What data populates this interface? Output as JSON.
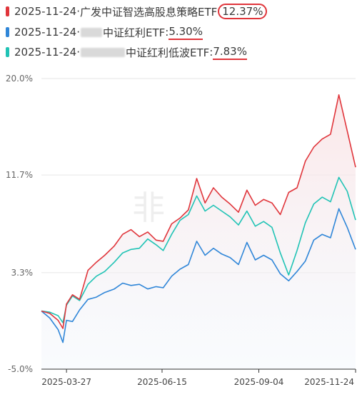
{
  "legend": [
    {
      "date": "2025-11-24",
      "sep": "·",
      "name": "广发中证智选高股息策略ETF",
      "colon": ":",
      "value": "12.37%",
      "color": "#e0353b",
      "mark": "circle",
      "blur_width": 0
    },
    {
      "date": "2025-11-24",
      "sep": "·",
      "name": "中证红利ETF",
      "colon": ":",
      "value": "5.30%",
      "color": "#2f86d8",
      "mark": "underline",
      "blur_width": 30
    },
    {
      "date": "2025-11-24",
      "sep": "·",
      "name": "中证红利低波ETF",
      "colon": ":",
      "value": "7.83%",
      "color": "#20c3b5",
      "mark": "underline",
      "blur_width": 62
    }
  ],
  "chart_data": {
    "type": "line",
    "ylim": [
      -5.0,
      20.0
    ],
    "ytick_labels": [
      "20.0%",
      "11.7%",
      "3.3%",
      "-5.0%"
    ],
    "ytick_values": [
      20.0,
      11.7,
      3.3,
      -5.0
    ],
    "xtick_labels": [
      "2025-03-27",
      "2025-06-15",
      "2025-09-04",
      "2025-11-24"
    ],
    "x_start": "2025-03-06",
    "x_end": "2025-11-24",
    "watermark": "非",
    "series": [
      {
        "name": "广发中证智选高股息策略ETF",
        "color": "#e0353b",
        "points": [
          [
            "2025-03-06",
            0.0
          ],
          [
            "2025-03-13",
            -0.2
          ],
          [
            "2025-03-20",
            -0.8
          ],
          [
            "2025-03-24",
            -1.5
          ],
          [
            "2025-03-27",
            0.6
          ],
          [
            "2025-04-01",
            1.4
          ],
          [
            "2025-04-07",
            1.0
          ],
          [
            "2025-04-14",
            3.5
          ],
          [
            "2025-04-21",
            4.2
          ],
          [
            "2025-04-28",
            4.8
          ],
          [
            "2025-05-06",
            5.6
          ],
          [
            "2025-05-13",
            6.6
          ],
          [
            "2025-05-20",
            7.0
          ],
          [
            "2025-05-27",
            6.4
          ],
          [
            "2025-06-03",
            6.8
          ],
          [
            "2025-06-10",
            6.1
          ],
          [
            "2025-06-16",
            6.0
          ],
          [
            "2025-06-23",
            7.5
          ],
          [
            "2025-06-30",
            8.0
          ],
          [
            "2025-07-07",
            8.7
          ],
          [
            "2025-07-14",
            11.4
          ],
          [
            "2025-07-21",
            9.3
          ],
          [
            "2025-07-28",
            10.6
          ],
          [
            "2025-08-04",
            9.8
          ],
          [
            "2025-08-11",
            9.2
          ],
          [
            "2025-08-18",
            8.5
          ],
          [
            "2025-08-25",
            10.4
          ],
          [
            "2025-09-01",
            9.1
          ],
          [
            "2025-09-08",
            9.6
          ],
          [
            "2025-09-15",
            9.3
          ],
          [
            "2025-09-22",
            8.3
          ],
          [
            "2025-09-29",
            10.2
          ],
          [
            "2025-10-06",
            10.6
          ],
          [
            "2025-10-13",
            12.9
          ],
          [
            "2025-10-20",
            14.1
          ],
          [
            "2025-10-27",
            14.8
          ],
          [
            "2025-11-03",
            15.2
          ],
          [
            "2025-11-10",
            18.6
          ],
          [
            "2025-11-17",
            15.5
          ],
          [
            "2025-11-24",
            12.37
          ]
        ]
      },
      {
        "name": "中证红利ETF",
        "color": "#2f86d8",
        "points": [
          [
            "2025-03-06",
            0.0
          ],
          [
            "2025-03-13",
            -0.6
          ],
          [
            "2025-03-20",
            -1.6
          ],
          [
            "2025-03-24",
            -2.7
          ],
          [
            "2025-03-27",
            -0.8
          ],
          [
            "2025-04-01",
            -0.9
          ],
          [
            "2025-04-07",
            0.1
          ],
          [
            "2025-04-14",
            1.0
          ],
          [
            "2025-04-21",
            1.2
          ],
          [
            "2025-04-28",
            1.6
          ],
          [
            "2025-05-06",
            1.9
          ],
          [
            "2025-05-13",
            2.4
          ],
          [
            "2025-05-20",
            2.2
          ],
          [
            "2025-05-27",
            2.3
          ],
          [
            "2025-06-03",
            1.9
          ],
          [
            "2025-06-10",
            2.1
          ],
          [
            "2025-06-16",
            2.0
          ],
          [
            "2025-06-23",
            3.0
          ],
          [
            "2025-06-30",
            3.6
          ],
          [
            "2025-07-07",
            4.0
          ],
          [
            "2025-07-14",
            6.0
          ],
          [
            "2025-07-21",
            4.8
          ],
          [
            "2025-07-28",
            5.4
          ],
          [
            "2025-08-04",
            4.9
          ],
          [
            "2025-08-11",
            4.6
          ],
          [
            "2025-08-18",
            4.0
          ],
          [
            "2025-08-25",
            5.9
          ],
          [
            "2025-09-01",
            4.4
          ],
          [
            "2025-09-08",
            4.8
          ],
          [
            "2025-09-15",
            4.4
          ],
          [
            "2025-09-22",
            3.2
          ],
          [
            "2025-09-29",
            2.6
          ],
          [
            "2025-10-06",
            3.4
          ],
          [
            "2025-10-13",
            4.3
          ],
          [
            "2025-10-20",
            6.1
          ],
          [
            "2025-10-27",
            6.6
          ],
          [
            "2025-11-03",
            6.3
          ],
          [
            "2025-11-10",
            8.8
          ],
          [
            "2025-11-17",
            7.2
          ],
          [
            "2025-11-24",
            5.3
          ]
        ]
      },
      {
        "name": "中证红利低波ETF",
        "color": "#20c3b5",
        "points": [
          [
            "2025-03-06",
            0.0
          ],
          [
            "2025-03-13",
            -0.1
          ],
          [
            "2025-03-20",
            -0.4
          ],
          [
            "2025-03-24",
            -1.0
          ],
          [
            "2025-03-27",
            0.5
          ],
          [
            "2025-04-01",
            1.3
          ],
          [
            "2025-04-07",
            0.9
          ],
          [
            "2025-04-14",
            2.3
          ],
          [
            "2025-04-21",
            3.0
          ],
          [
            "2025-04-28",
            3.4
          ],
          [
            "2025-05-06",
            4.2
          ],
          [
            "2025-05-13",
            5.0
          ],
          [
            "2025-05-20",
            5.3
          ],
          [
            "2025-05-27",
            5.4
          ],
          [
            "2025-06-03",
            6.2
          ],
          [
            "2025-06-10",
            5.7
          ],
          [
            "2025-06-16",
            5.2
          ],
          [
            "2025-06-23",
            6.6
          ],
          [
            "2025-06-30",
            7.8
          ],
          [
            "2025-07-07",
            8.3
          ],
          [
            "2025-07-14",
            9.9
          ],
          [
            "2025-07-21",
            8.6
          ],
          [
            "2025-07-28",
            9.1
          ],
          [
            "2025-08-04",
            8.6
          ],
          [
            "2025-08-11",
            8.1
          ],
          [
            "2025-08-18",
            7.4
          ],
          [
            "2025-08-25",
            8.6
          ],
          [
            "2025-09-01",
            7.3
          ],
          [
            "2025-09-08",
            7.7
          ],
          [
            "2025-09-15",
            7.2
          ],
          [
            "2025-09-22",
            5.0
          ],
          [
            "2025-09-29",
            3.1
          ],
          [
            "2025-10-06",
            5.2
          ],
          [
            "2025-10-13",
            7.6
          ],
          [
            "2025-10-20",
            9.2
          ],
          [
            "2025-10-27",
            9.8
          ],
          [
            "2025-11-03",
            9.4
          ],
          [
            "2025-11-10",
            11.5
          ],
          [
            "2025-11-17",
            10.3
          ],
          [
            "2025-11-24",
            7.83
          ]
        ]
      }
    ]
  }
}
